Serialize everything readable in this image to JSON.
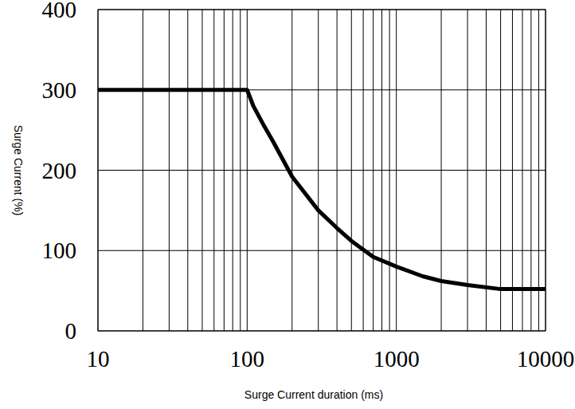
{
  "chart_data": {
    "type": "line",
    "x_label": "Surge Current duration (ms)",
    "y_label": "Surge Current (%)",
    "x": [
      10,
      100,
      110,
      130,
      150,
      200,
      300,
      400,
      500,
      700,
      1000,
      1500,
      2000,
      3000,
      5000,
      10000
    ],
    "values": [
      300,
      300,
      280,
      255,
      235,
      192,
      150,
      128,
      112,
      92,
      80,
      68,
      62,
      57,
      52,
      52
    ],
    "color": "#000000",
    "log": "x",
    "grid": true,
    "xlim": [
      10,
      10000
    ],
    "xticks": [
      10,
      100,
      1000,
      10000
    ],
    "ylim": [
      0,
      400
    ],
    "yticks": [
      0,
      100,
      200,
      300,
      400
    ]
  }
}
